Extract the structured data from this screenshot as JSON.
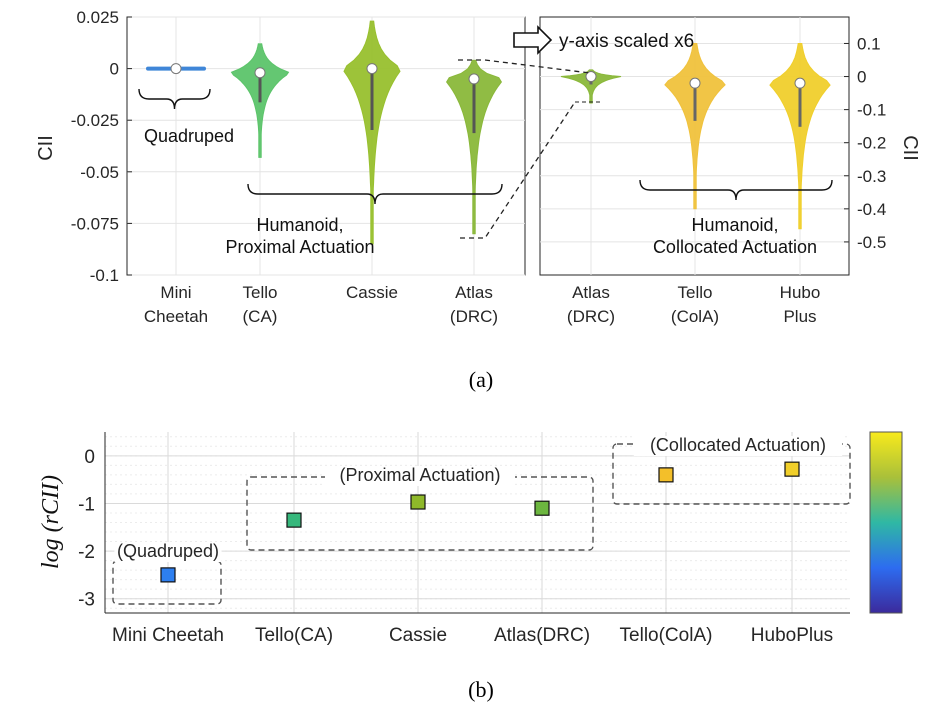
{
  "chart_data": [
    {
      "panel": "(a)",
      "type": "violin",
      "left_axis": {
        "ylabel": "CII",
        "ylim": [
          -0.1,
          0.025
        ],
        "yticks": [
          0.025,
          0,
          -0.025,
          -0.05,
          -0.075,
          -0.1
        ],
        "ytick_labels": [
          "0.025",
          "0",
          "-0.025",
          "-0.05",
          "-0.075",
          "-0.1"
        ],
        "categories": [
          "Mini\nCheetah",
          "Tello\n(CA)",
          "Cassie",
          "Atlas\n(DRC)"
        ],
        "colors": [
          "#3f86d8",
          "#5cc46a",
          "#98c02e",
          "#8ab83a"
        ],
        "medians": [
          0,
          -0.002,
          0,
          -0.005
        ],
        "ranges": [
          [
            -0.0005,
            0.0005
          ],
          [
            -0.043,
            0.012
          ],
          [
            -0.085,
            0.023
          ],
          [
            -0.08,
            0.004
          ]
        ]
      },
      "right_axis": {
        "ylabel": "CII",
        "ylim": [
          -0.6,
          0.18
        ],
        "yticks": [
          0.1,
          0,
          -0.1,
          -0.2,
          -0.3,
          -0.4,
          -0.5
        ],
        "ytick_labels": [
          "0.1",
          "0",
          "-0.1",
          "-0.2",
          "-0.3",
          "-0.4",
          "-0.5"
        ],
        "categories": [
          "Atlas\n(DRC)",
          "Tello\n(ColA)",
          "Hubo\nPlus"
        ],
        "colors": [
          "#8ab83a",
          "#f0c23c",
          "#f0cf2c"
        ],
        "medians": [
          0,
          -0.02,
          -0.02
        ],
        "ranges": [
          [
            -0.08,
            0.02
          ],
          [
            -0.4,
            0.1
          ],
          [
            -0.46,
            0.1
          ]
        ]
      },
      "annotations": {
        "quadruped": "Quadruped",
        "humanoid_proximal": "Humanoid,\nProximal Actuation",
        "humanoid_collocated": "Humanoid,\nCollocated Actuation",
        "scaled": "y-axis scaled x6"
      },
      "grid": true
    },
    {
      "panel": "(b)",
      "type": "scatter",
      "ylabel": "log (rCII)",
      "ylim": [
        -3.3,
        0.5
      ],
      "yticks": [
        0,
        -1,
        -2,
        -3
      ],
      "ytick_labels": [
        "0",
        "-1",
        "-2",
        "-3"
      ],
      "categories": [
        "Mini Cheetah",
        "Tello(CA)",
        "Cassie",
        "Atlas(DRC)",
        "Tello(ColA)",
        "HuboPlus"
      ],
      "values": [
        -2.5,
        -1.35,
        -0.97,
        -1.1,
        -0.4,
        -0.28
      ],
      "colors": [
        "#2d7ff0",
        "#36b87c",
        "#8fb92a",
        "#6cb63f",
        "#f3bf2a",
        "#f1cf2a"
      ],
      "groups": [
        "(Quadruped)",
        "(Proximal Actuation)",
        "(Collocated Actuation)"
      ],
      "colorbar": true,
      "grid": true
    }
  ],
  "captions": [
    "(a)",
    "(b)"
  ]
}
